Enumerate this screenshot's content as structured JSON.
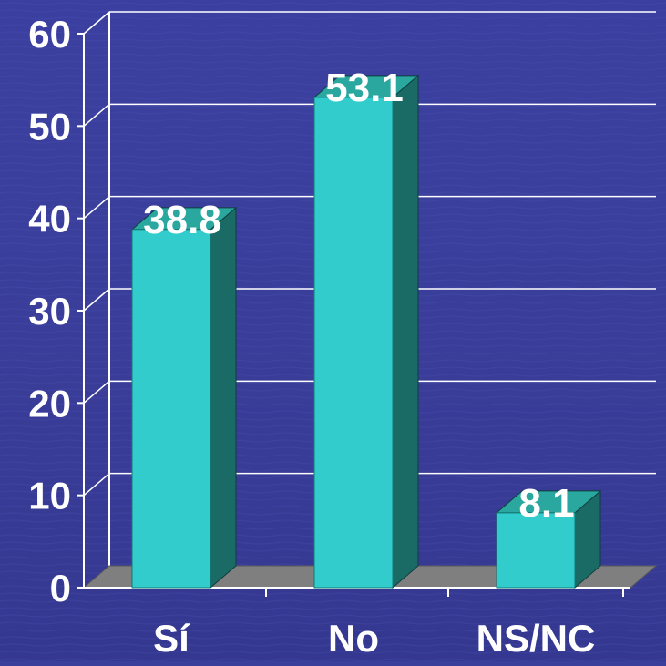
{
  "chart_data": {
    "type": "bar",
    "title": "",
    "xlabel": "",
    "ylabel": "",
    "categories": [
      "Sí",
      "No",
      "NS/NC"
    ],
    "values": [
      38.8,
      53.1,
      8.1
    ],
    "value_labels": [
      "38.8",
      "53.1",
      "8.1"
    ],
    "ylim": [
      0,
      60
    ],
    "yticks": [
      "0",
      "10",
      "20",
      "30",
      "40",
      "50",
      "60"
    ],
    "grid": true,
    "legend": "none",
    "style": "3d-bar"
  },
  "colors": {
    "background": "#3a3f9c",
    "bar_front": "#33cccc",
    "bar_side": "#1a6b66",
    "bar_top": "#2aa8a0",
    "floor": "#7f7f7f",
    "grid": "#ffffff",
    "text": "#ffffff"
  }
}
